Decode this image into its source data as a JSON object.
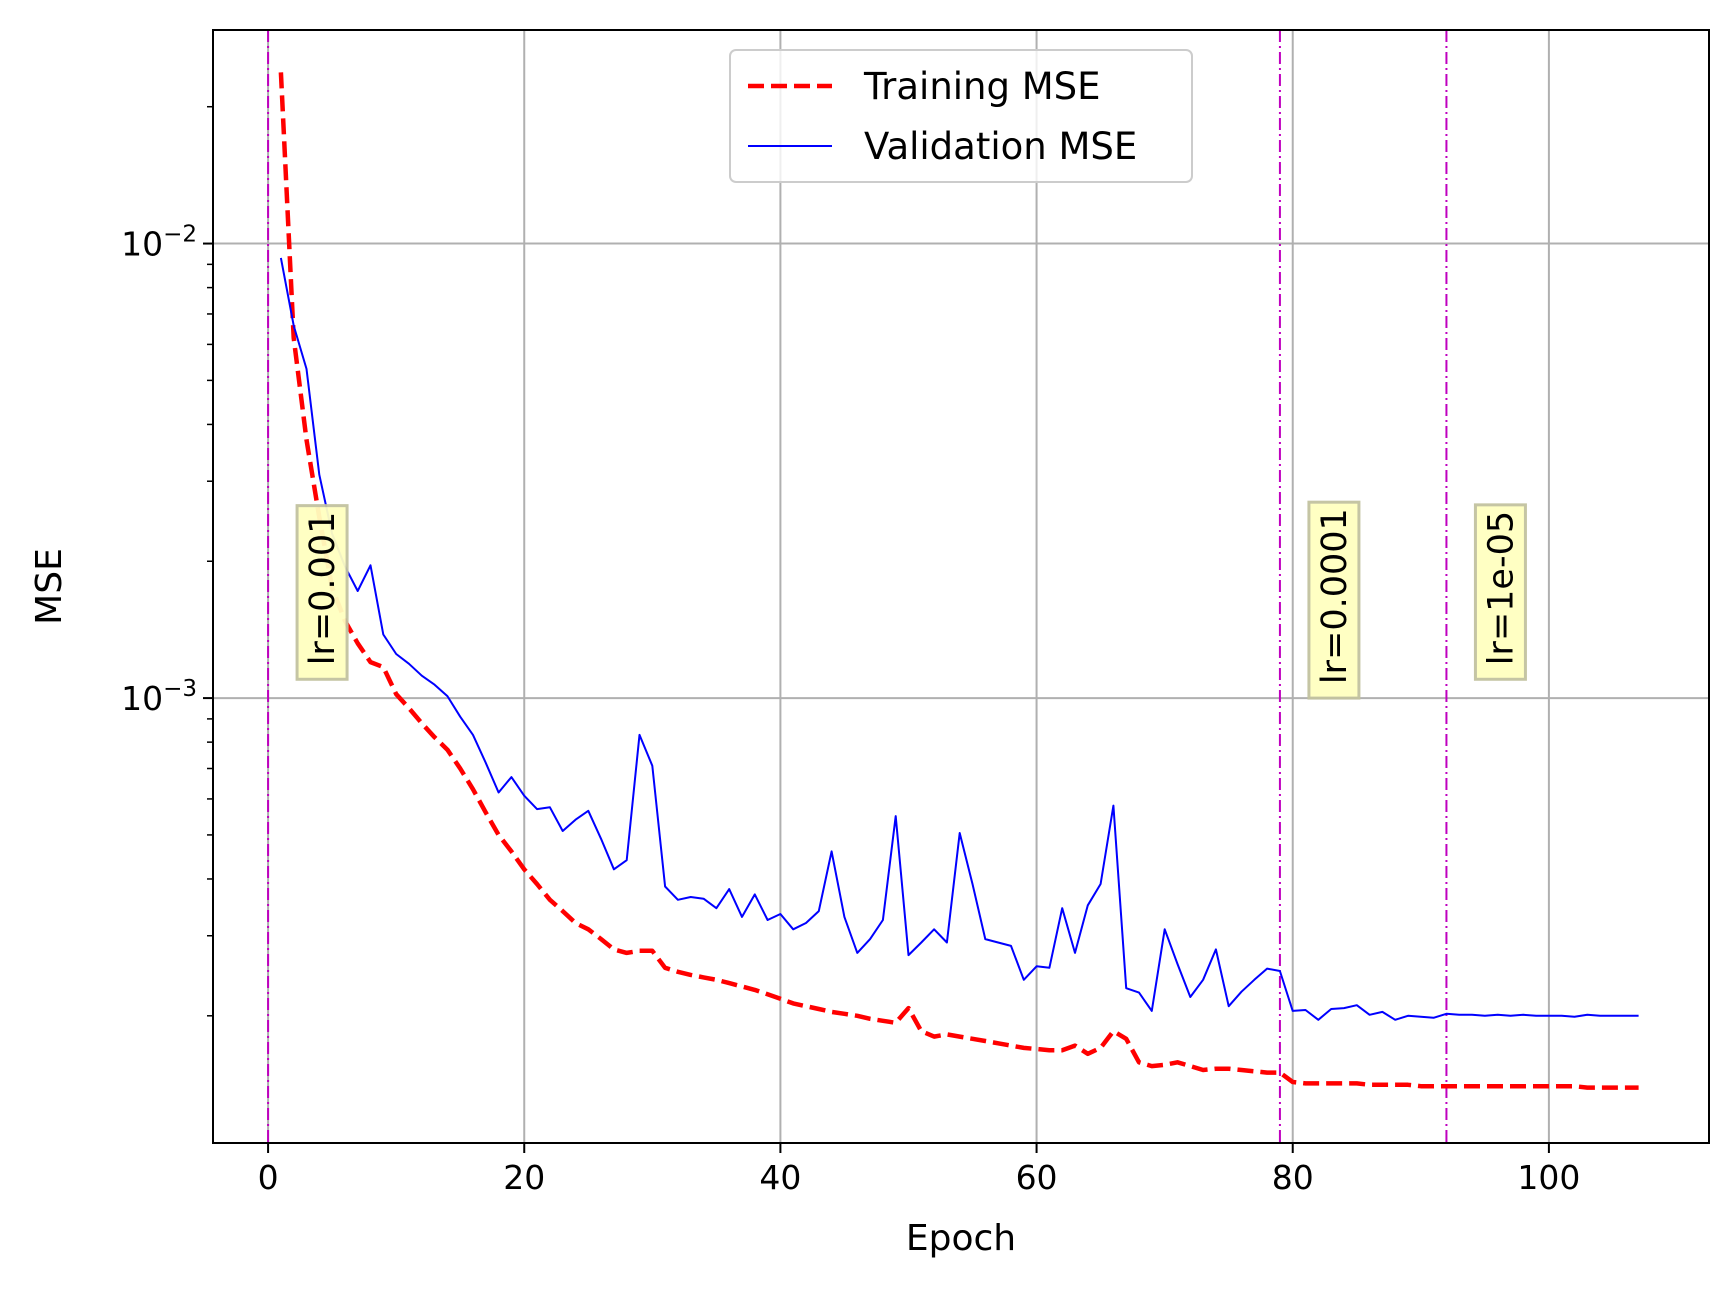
{
  "chart_data": {
    "type": "line",
    "xlabel": "Epoch",
    "ylabel": "MSE",
    "y_scale": "log",
    "xlim": [
      -4.3,
      112.5
    ],
    "ylim": [
      0.000105,
      0.0295
    ],
    "xticks": [
      0,
      20,
      40,
      60,
      80,
      100
    ],
    "xtick_labels": [
      "0",
      "20",
      "40",
      "60",
      "80",
      "100"
    ],
    "yticks": [
      0.01,
      0.001
    ],
    "ytick_labels": [
      {
        "base": "10",
        "exp": "−2"
      },
      {
        "base": "10",
        "exp": "−3"
      }
    ],
    "grid": true,
    "legend": {
      "placement": "upper-center",
      "entries": [
        {
          "label": "Training MSE",
          "series": 0
        },
        {
          "label": "Validation MSE",
          "series": 1
        }
      ]
    },
    "series": [
      {
        "name": "Training MSE",
        "color": "#ff0000",
        "style": "dashed",
        "x": [
          1,
          2,
          3,
          4,
          5,
          6,
          7,
          8,
          9,
          10,
          11,
          12,
          13,
          14,
          15,
          16,
          17,
          18,
          19,
          20,
          21,
          22,
          23,
          24,
          25,
          26,
          27,
          28,
          29,
          30,
          31,
          32,
          33,
          34,
          35,
          36,
          37,
          38,
          39,
          40,
          41,
          42,
          43,
          44,
          45,
          46,
          47,
          48,
          49,
          50,
          51,
          52,
          53,
          54,
          55,
          56,
          57,
          58,
          59,
          60,
          61,
          62,
          63,
          64,
          65,
          66,
          67,
          68,
          69,
          70,
          71,
          72,
          73,
          74,
          75,
          76,
          77,
          78,
          79,
          80,
          81,
          82,
          83,
          84,
          85,
          86,
          87,
          88,
          89,
          90,
          91,
          92,
          93,
          94,
          95,
          96,
          97,
          98,
          99,
          100,
          101,
          102,
          103,
          104,
          105,
          106,
          107
        ],
        "y": [
          0.0238,
          0.0062,
          0.0037,
          0.0025,
          0.00175,
          0.00148,
          0.00132,
          0.0012,
          0.00117,
          0.00102,
          0.00095,
          0.00088,
          0.00082,
          0.00077,
          0.0007,
          0.00063,
          0.00056,
          0.0005,
          0.00046,
          0.00042,
          0.00039,
          0.00036,
          0.00034,
          0.00032,
          0.00031,
          0.000295,
          0.00028,
          0.000275,
          0.000278,
          0.000278,
          0.000255,
          0.00025,
          0.000246,
          0.000243,
          0.00024,
          0.000236,
          0.000232,
          0.000228,
          0.000223,
          0.000218,
          0.000213,
          0.00021,
          0.000207,
          0.000204,
          0.000202,
          0.0002,
          0.000197,
          0.000195,
          0.000193,
          0.000208,
          0.000185,
          0.00018,
          0.000182,
          0.00018,
          0.000178,
          0.000176,
          0.000174,
          0.000172,
          0.00017,
          0.000169,
          0.000168,
          0.000168,
          0.000172,
          0.000165,
          0.00017,
          0.000185,
          0.000178,
          0.000158,
          0.000155,
          0.000156,
          0.000158,
          0.000155,
          0.000152,
          0.000153,
          0.000153,
          0.000152,
          0.000151,
          0.00015,
          0.00015,
          0.000143,
          0.000142,
          0.000142,
          0.000142,
          0.000142,
          0.000142,
          0.000141,
          0.000141,
          0.000141,
          0.000141,
          0.00014,
          0.00014,
          0.00014,
          0.00014,
          0.00014,
          0.00014,
          0.00014,
          0.00014,
          0.00014,
          0.00014,
          0.00014,
          0.00014,
          0.00014,
          0.000139,
          0.000139,
          0.000139,
          0.000139,
          0.000139
        ]
      },
      {
        "name": "Validation MSE",
        "color": "#0000ff",
        "style": "solid",
        "x": [
          1,
          2,
          3,
          4,
          5,
          6,
          7,
          8,
          9,
          10,
          11,
          12,
          13,
          14,
          15,
          16,
          17,
          18,
          19,
          20,
          21,
          22,
          23,
          24,
          25,
          26,
          27,
          28,
          29,
          30,
          31,
          32,
          33,
          34,
          35,
          36,
          37,
          38,
          39,
          40,
          41,
          42,
          43,
          44,
          45,
          46,
          47,
          48,
          49,
          50,
          51,
          52,
          53,
          54,
          55,
          56,
          57,
          58,
          59,
          60,
          61,
          62,
          63,
          64,
          65,
          66,
          67,
          68,
          69,
          70,
          71,
          72,
          73,
          74,
          75,
          76,
          77,
          78,
          79,
          80,
          81,
          82,
          83,
          84,
          85,
          86,
          87,
          88,
          89,
          90,
          91,
          92,
          93,
          94,
          95,
          96,
          97,
          98,
          99,
          100,
          101,
          102,
          103,
          104,
          105,
          106,
          107
        ],
        "y": [
          0.0093,
          0.0066,
          0.0053,
          0.0031,
          0.0023,
          0.00195,
          0.00172,
          0.00196,
          0.00138,
          0.00125,
          0.00119,
          0.00112,
          0.00107,
          0.00101,
          0.00091,
          0.00083,
          0.00072,
          0.00062,
          0.00067,
          0.00061,
          0.00057,
          0.000575,
          0.00051,
          0.00054,
          0.000565,
          0.00049,
          0.00042,
          0.00044,
          0.00083,
          0.00071,
          0.000385,
          0.00036,
          0.000365,
          0.000362,
          0.000345,
          0.00038,
          0.00033,
          0.00037,
          0.000325,
          0.000335,
          0.00031,
          0.00032,
          0.00034,
          0.00046,
          0.00033,
          0.000275,
          0.000295,
          0.000325,
          0.00055,
          0.000272,
          0.00029,
          0.00031,
          0.00029,
          0.000505,
          0.00039,
          0.000295,
          0.00029,
          0.000285,
          0.00024,
          0.000257,
          0.000255,
          0.000345,
          0.000275,
          0.00035,
          0.00039,
          0.00058,
          0.00023,
          0.000225,
          0.000205,
          0.00031,
          0.00026,
          0.00022,
          0.00024,
          0.00028,
          0.00021,
          0.000226,
          0.00024,
          0.000254,
          0.000251,
          0.000205,
          0.000206,
          0.000196,
          0.000207,
          0.000208,
          0.000211,
          0.000201,
          0.000204,
          0.000196,
          0.0002,
          0.000199,
          0.000198,
          0.000202,
          0.000201,
          0.000201,
          0.0002,
          0.000201,
          0.0002,
          0.000201,
          0.0002,
          0.0002,
          0.0002,
          0.000199,
          0.000201,
          0.0002,
          0.0002,
          0.0002,
          0.0002
        ]
      }
    ],
    "vlines": [
      {
        "x": 0,
        "color": "#bf00bf",
        "style": "dashdot",
        "label": "lr=0.001"
      },
      {
        "x": 79,
        "color": "#bf00bf",
        "style": "dashdot",
        "label": "lr=0.0001"
      },
      {
        "x": 92,
        "color": "#bf00bf",
        "style": "dashdot",
        "label": "lr=1e-05"
      }
    ],
    "annotation_box_color": "#ffffc0"
  }
}
